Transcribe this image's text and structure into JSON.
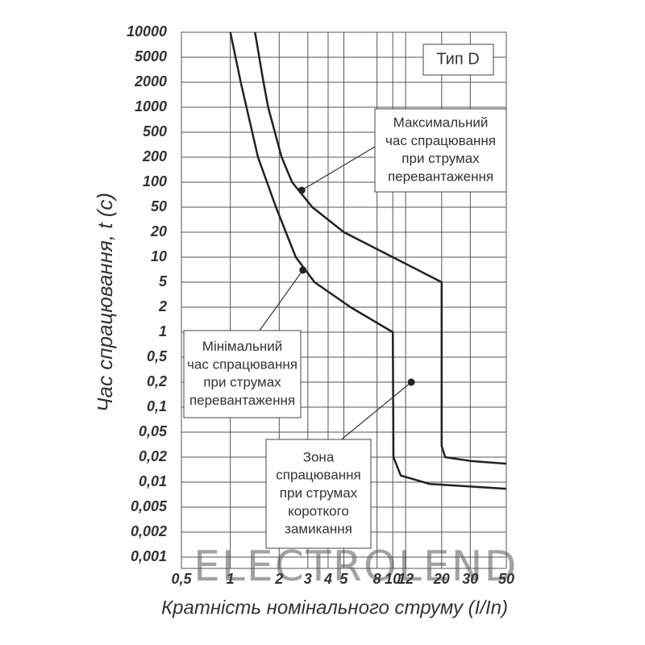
{
  "chart_data": {
    "type": "line",
    "title": "Тип D",
    "x_label": "Кратність номінального струму (I/In)",
    "y_label": "Час спрацювання, t (c)",
    "log_x": true,
    "grid": true,
    "xlim": [
      0.5,
      50
    ],
    "xticks": [
      {
        "value": 0.5,
        "label": "0,5"
      },
      1,
      2,
      3,
      4,
      5,
      8,
      10,
      12,
      20,
      30,
      50
    ],
    "ylim": [
      0.001,
      10000
    ],
    "yticks": [
      10000,
      5000,
      2000,
      1000,
      500,
      200,
      100,
      50,
      20,
      10,
      5,
      2,
      1,
      {
        "value": 0.5,
        "label": "0,5"
      },
      {
        "value": 0.2,
        "label": "0,2"
      },
      {
        "value": 0.1,
        "label": "0,1"
      },
      {
        "value": 0.05,
        "label": "0,05"
      },
      {
        "value": 0.02,
        "label": "0,02"
      },
      {
        "value": 0.01,
        "label": "0,01"
      },
      {
        "value": 0.005,
        "label": "0,005"
      },
      {
        "value": 0.002,
        "label": "0,002"
      },
      {
        "value": 0.001,
        "label": "0,001"
      }
    ],
    "series": [
      {
        "color": "#222222",
        "x": [
          1.42,
          1.6,
          1.71,
          2.07,
          2.4,
          3.2,
          5,
          10,
          20,
          20,
          21,
          30,
          50
        ],
        "y": [
          10000,
          2000,
          1000,
          200,
          100,
          50,
          20,
          10,
          5,
          0.03,
          0.02,
          0.018,
          0.0167
        ]
      },
      {
        "color": "#222222",
        "x": [
          1,
          1.16,
          1.48,
          1.91,
          2.53,
          3.3,
          5.5,
          10,
          10.1,
          11.2,
          16.9,
          50
        ],
        "y": [
          10000,
          2000,
          200,
          50,
          10,
          5,
          2,
          1,
          0.02,
          0.012,
          0.0095,
          0.0083
        ]
      }
    ],
    "annotations": [
      {
        "lines": [
          "Максимальний",
          "час спрацювання",
          "при струмах",
          "перевантаження"
        ],
        "x": 2.75,
        "y": 80
      },
      {
        "lines": [
          "Мінімальний",
          "час спрацювання",
          "при струмах",
          "перевантаження"
        ],
        "x": 2.8,
        "y": 7
      },
      {
        "lines": [
          "Зона",
          "спрацювання",
          "при струмах",
          "короткого",
          "замикання"
        ],
        "x": 13,
        "y": 0.2
      }
    ],
    "watermark": "ELECTROLEND"
  }
}
